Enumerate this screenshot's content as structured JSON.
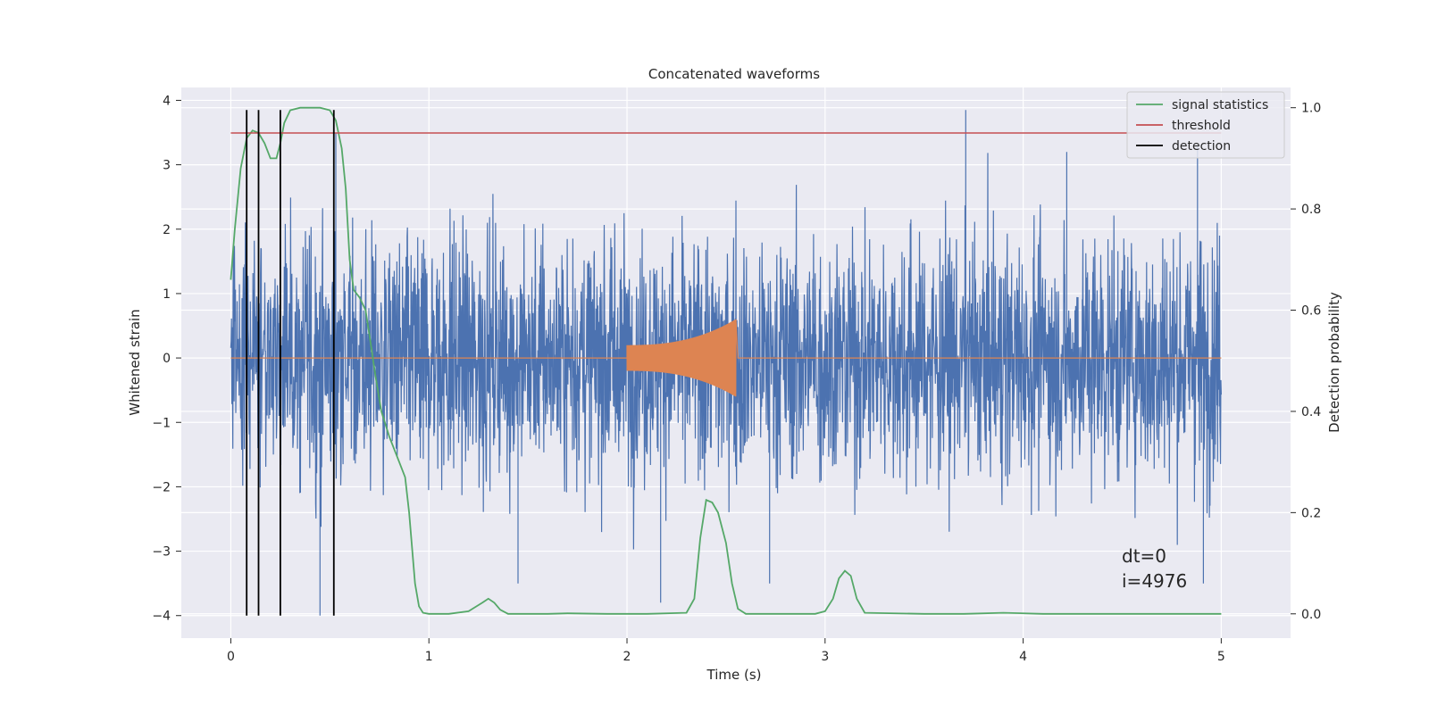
{
  "chart_data": {
    "type": "line",
    "title": "Concatenated waveforms",
    "xlabel": "Time (s)",
    "ylabel": "Whitened strain",
    "y2label": "Detection probability",
    "xlim": [
      -0.25,
      5.35
    ],
    "ylim": [
      -4.35,
      4.2
    ],
    "y2lim": [
      -0.048,
      1.04
    ],
    "xticks": [
      0,
      1,
      2,
      3,
      4,
      5
    ],
    "yticks": [
      -4,
      -3,
      -2,
      -1,
      0,
      1,
      2,
      3,
      4
    ],
    "y2ticks": [
      0.0,
      0.2,
      0.4,
      0.6,
      0.8,
      1.0
    ],
    "y2tick_labels": [
      "0.0",
      "0.2",
      "0.4",
      "0.6",
      "0.8",
      "1.0"
    ],
    "grid": true,
    "legend_position": "top-right",
    "series": [
      {
        "name": "",
        "axis": "left",
        "kind": "noise",
        "color": "#4c72b0",
        "x_range": [
          0,
          5
        ],
        "typical_amplitude": 1.5,
        "peaks": [
          {
            "x": 0.45,
            "y": -4.0
          },
          {
            "x": 0.53,
            "y": 3.5
          },
          {
            "x": 1.45,
            "y": -3.5
          },
          {
            "x": 2.17,
            "y": -3.8
          },
          {
            "x": 2.72,
            "y": -3.5
          },
          {
            "x": 3.71,
            "y": 3.85
          },
          {
            "x": 4.22,
            "y": 3.2
          },
          {
            "x": 4.88,
            "y": 3.3
          },
          {
            "x": 4.91,
            "y": -3.5
          }
        ]
      },
      {
        "name": "",
        "axis": "left",
        "kind": "chirp",
        "color": "#dd8452",
        "x_range": [
          0,
          5
        ],
        "chirp_start": 2.0,
        "chirp_end": 2.55,
        "start_amplitude": 0.2,
        "end_amplitude": 0.6
      },
      {
        "name": "signal statistics",
        "axis": "right",
        "color": "#55a868",
        "x": [
          0.0,
          0.02,
          0.05,
          0.08,
          0.11,
          0.14,
          0.17,
          0.2,
          0.23,
          0.25,
          0.27,
          0.3,
          0.35,
          0.4,
          0.45,
          0.5,
          0.53,
          0.56,
          0.58,
          0.6,
          0.62,
          0.65,
          0.68,
          0.7,
          0.73,
          0.76,
          0.8,
          0.85,
          0.88,
          0.9,
          0.93,
          0.95,
          0.97,
          1.0,
          1.1,
          1.2,
          1.27,
          1.3,
          1.33,
          1.36,
          1.4,
          1.45,
          1.6,
          1.7,
          1.9,
          2.1,
          2.3,
          2.34,
          2.37,
          2.4,
          2.43,
          2.46,
          2.5,
          2.53,
          2.56,
          2.6,
          2.8,
          2.95,
          3.0,
          3.04,
          3.07,
          3.1,
          3.13,
          3.16,
          3.2,
          3.5,
          3.7,
          3.9,
          4.1,
          4.5,
          5.0
        ],
        "values": [
          0.66,
          0.76,
          0.88,
          0.94,
          0.955,
          0.95,
          0.93,
          0.9,
          0.9,
          0.93,
          0.97,
          0.995,
          1.0,
          1.0,
          1.0,
          0.995,
          0.975,
          0.92,
          0.84,
          0.7,
          0.64,
          0.625,
          0.6,
          0.55,
          0.47,
          0.4,
          0.35,
          0.3,
          0.27,
          0.2,
          0.06,
          0.015,
          0.002,
          0.0,
          0.0,
          0.005,
          0.022,
          0.03,
          0.022,
          0.008,
          0.0,
          0.0,
          0.0,
          0.001,
          0.0,
          0.0,
          0.002,
          0.03,
          0.15,
          0.225,
          0.22,
          0.2,
          0.14,
          0.06,
          0.01,
          0.0,
          0.0,
          0.0,
          0.005,
          0.03,
          0.07,
          0.085,
          0.075,
          0.03,
          0.002,
          0.0,
          0.0,
          0.002,
          0.0,
          0.0,
          0.0
        ]
      },
      {
        "name": "threshold",
        "axis": "right",
        "color": "#c44e52",
        "x": [
          0,
          5
        ],
        "values": [
          0.95,
          0.95
        ]
      },
      {
        "name": "detection",
        "axis": "left",
        "kind": "vlines",
        "color": "#000000",
        "x": [
          0.08,
          0.14,
          0.25,
          0.52
        ],
        "y_range": [
          -4.0,
          3.85
        ]
      }
    ],
    "annotation": {
      "x": 4.5,
      "lines": [
        "dt=0",
        "i=4976"
      ]
    }
  },
  "legend": {
    "items": [
      {
        "label": "signal statistics",
        "color": "#55a868"
      },
      {
        "label": "threshold",
        "color": "#c44e52"
      },
      {
        "label": "detection",
        "color": "#000000"
      }
    ]
  },
  "colors": {
    "plot_background": "#eaeaf2",
    "grid": "#ffffff",
    "noise": "#4c72b0",
    "chirp": "#dd8452"
  }
}
